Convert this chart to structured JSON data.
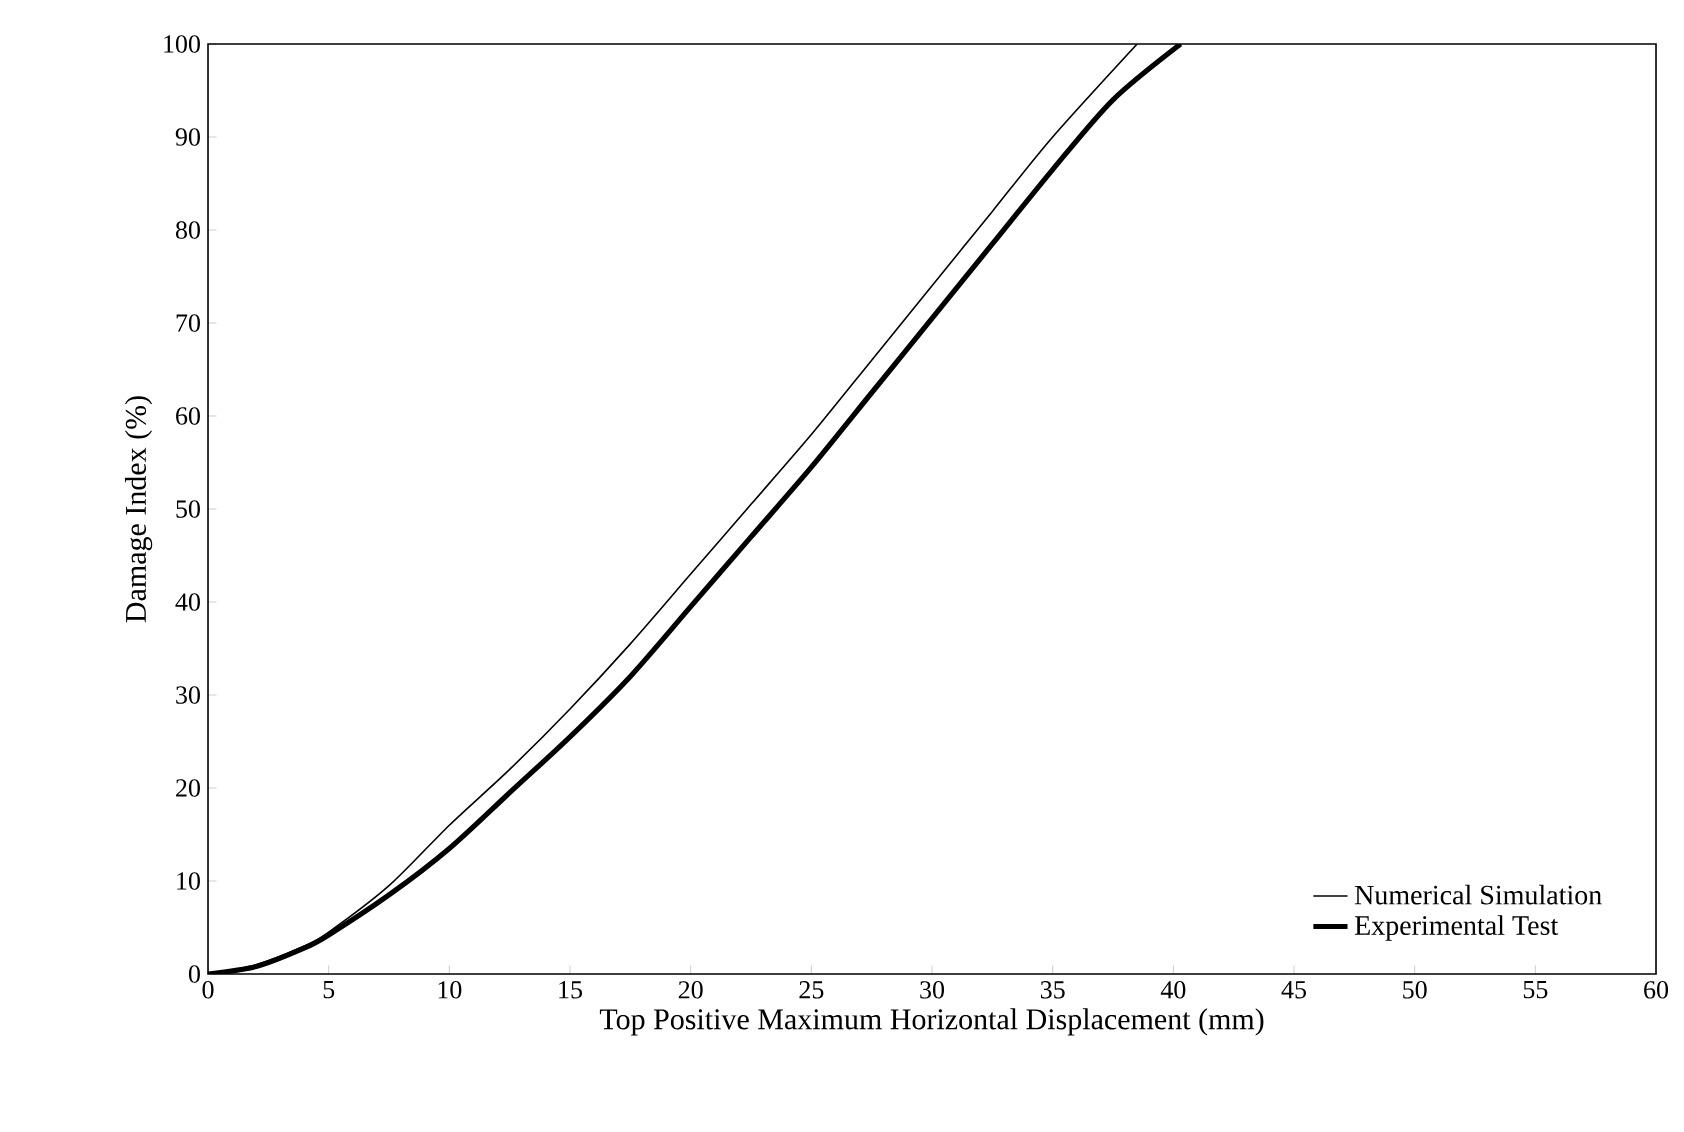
{
  "chart_data": {
    "type": "line",
    "xlabel": "Top Positive Maximum Horizontal Displacement (mm)",
    "ylabel": "Damage Index (%)",
    "xlim": [
      0,
      60
    ],
    "ylim": [
      0,
      100
    ],
    "xticks": [
      0,
      5,
      10,
      15,
      20,
      25,
      30,
      35,
      40,
      45,
      50,
      55,
      60
    ],
    "yticks": [
      0,
      10,
      20,
      30,
      40,
      50,
      60,
      70,
      80,
      90,
      100
    ],
    "grid": false,
    "legend": "bottom right",
    "marker": "none",
    "series": [
      {
        "name": "Numerical Simulation",
        "color": "#000000",
        "x": [
          0,
          2,
          4,
          5,
          7.5,
          10,
          12.5,
          15,
          17.5,
          20,
          22.5,
          25,
          27.5,
          30,
          32.5,
          35,
          38.5
        ],
        "values": [
          0,
          1,
          3,
          4.5,
          9.5,
          16,
          22,
          28.5,
          35.5,
          43,
          50.5,
          58,
          66,
          74,
          82,
          90,
          100
        ]
      },
      {
        "name": "Experimental Test",
        "color": "#000000",
        "x": [
          0,
          2,
          4,
          5,
          7.5,
          10,
          12.5,
          15,
          17.5,
          20,
          22.5,
          25,
          27.5,
          30,
          32.5,
          35,
          37.5,
          40.3
        ],
        "values": [
          0,
          0.8,
          2.8,
          4.2,
          8.5,
          13.5,
          19.5,
          25.5,
          32,
          39.5,
          47,
          54.5,
          62.5,
          70.5,
          78.5,
          86.5,
          94,
          100
        ]
      }
    ]
  }
}
